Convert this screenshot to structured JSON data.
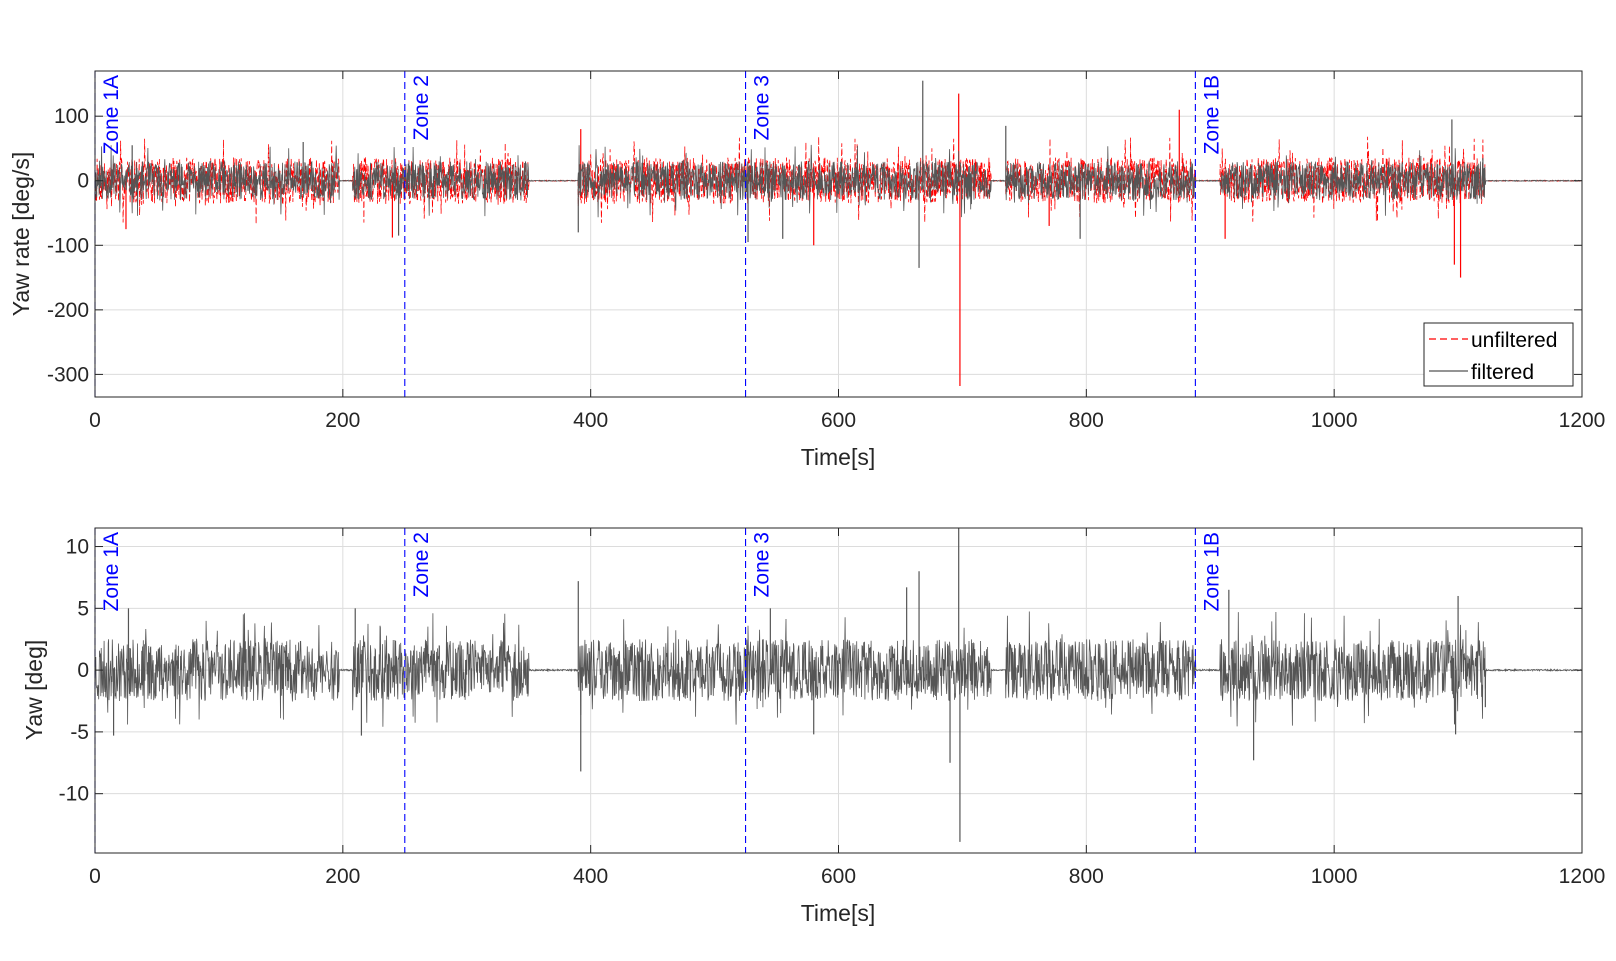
{
  "chart_data": [
    {
      "type": "line",
      "title": "",
      "xlabel": "Time[s]",
      "ylabel": "Yaw rate [deg/s]",
      "xlim": [
        0,
        1200
      ],
      "ylim": [
        -335,
        170
      ],
      "xticks": [
        0,
        200,
        400,
        600,
        800,
        1000,
        1200
      ],
      "yticks": [
        -300,
        -200,
        -100,
        0,
        100
      ],
      "x_tick_labels": [
        "0",
        "200",
        "400",
        "600",
        "800",
        "1000",
        "1200"
      ],
      "y_tick_labels": [
        "-300",
        "-200",
        "-100",
        "0",
        "100"
      ],
      "grid": true,
      "legend_position": "bottom-right",
      "zones": [
        {
          "label": "Zone 1A",
          "x": 0
        },
        {
          "label": "Zone 2",
          "x": 250
        },
        {
          "label": "Zone 3",
          "x": 525
        },
        {
          "label": "Zone 1B",
          "x": 888
        }
      ],
      "activity_segments": [
        [
          0,
          197
        ],
        [
          208,
          350
        ],
        [
          390,
          723
        ],
        [
          735,
          888
        ],
        [
          908,
          1122
        ]
      ],
      "noise_amplitude": 30,
      "spikes": [
        {
          "x": 25,
          "y": -75
        },
        {
          "x": 30,
          "y": 55
        },
        {
          "x": 168,
          "y": 60
        },
        {
          "x": 240,
          "y": -88
        },
        {
          "x": 245,
          "y": -85
        },
        {
          "x": 390,
          "y": -80
        },
        {
          "x": 392,
          "y": 80
        },
        {
          "x": 527,
          "y": -95
        },
        {
          "x": 555,
          "y": -90
        },
        {
          "x": 580,
          "y": -100
        },
        {
          "x": 668,
          "y": 155
        },
        {
          "x": 665,
          "y": -135
        },
        {
          "x": 697,
          "y": 135
        },
        {
          "x": 698,
          "y": -318
        },
        {
          "x": 735,
          "y": 85
        },
        {
          "x": 770,
          "y": -70
        },
        {
          "x": 795,
          "y": -90
        },
        {
          "x": 875,
          "y": 110
        },
        {
          "x": 912,
          "y": -90
        },
        {
          "x": 1095,
          "y": 95
        },
        {
          "x": 1097,
          "y": -130
        },
        {
          "x": 1102,
          "y": -150
        },
        {
          "x": 1120,
          "y": 35
        }
      ],
      "series": [
        {
          "name": "unfiltered",
          "color": "#ff0000",
          "style": "dashed"
        },
        {
          "name": "filtered",
          "color": "#555555",
          "style": "solid"
        }
      ]
    },
    {
      "type": "line",
      "title": "",
      "xlabel": "Time[s]",
      "ylabel": "Yaw [deg]",
      "xlim": [
        0,
        1200
      ],
      "ylim": [
        -14.8,
        11.5
      ],
      "xticks": [
        0,
        200,
        400,
        600,
        800,
        1000,
        1200
      ],
      "yticks": [
        -10,
        -5,
        0,
        5,
        10
      ],
      "x_tick_labels": [
        "0",
        "200",
        "400",
        "600",
        "800",
        "1000",
        "1200"
      ],
      "y_tick_labels": [
        "-10",
        "-5",
        "0",
        "5",
        "10"
      ],
      "grid": true,
      "zones": [
        {
          "label": "Zone 1A",
          "x": 0
        },
        {
          "label": "Zone 2",
          "x": 250
        },
        {
          "label": "Zone 3",
          "x": 525
        },
        {
          "label": "Zone 1B",
          "x": 888
        }
      ],
      "activity_segments": [
        [
          0,
          197
        ],
        [
          208,
          350
        ],
        [
          390,
          723
        ],
        [
          735,
          888
        ],
        [
          908,
          1122
        ]
      ],
      "noise_amplitude": 2.5,
      "spikes": [
        {
          "x": 15,
          "y": -5.3
        },
        {
          "x": 27,
          "y": 5.0
        },
        {
          "x": 210,
          "y": 5.0
        },
        {
          "x": 215,
          "y": -5.3
        },
        {
          "x": 390,
          "y": 7.2
        },
        {
          "x": 392,
          "y": -8.2
        },
        {
          "x": 545,
          "y": 5.0
        },
        {
          "x": 580,
          "y": -5.2
        },
        {
          "x": 655,
          "y": 6.7
        },
        {
          "x": 665,
          "y": 8.0
        },
        {
          "x": 690,
          "y": -7.5
        },
        {
          "x": 697,
          "y": 11.5
        },
        {
          "x": 698,
          "y": -13.9
        },
        {
          "x": 915,
          "y": 6.5
        },
        {
          "x": 935,
          "y": -7.3
        },
        {
          "x": 1100,
          "y": 6.0
        },
        {
          "x": 1098,
          "y": -5.2
        },
        {
          "x": 1122,
          "y": -3.0
        }
      ],
      "series": [
        {
          "color": "#555555",
          "style": "solid"
        }
      ]
    }
  ]
}
